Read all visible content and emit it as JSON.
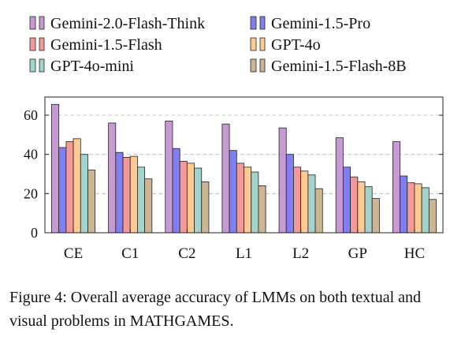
{
  "chart_data": {
    "type": "bar",
    "categories": [
      "CE",
      "C1",
      "C2",
      "L1",
      "L2",
      "GP",
      "HC"
    ],
    "ylim": [
      0,
      70
    ],
    "yticks": [
      0,
      20,
      40,
      60
    ],
    "grid": "horizontal dashed",
    "legend_position": "top",
    "series": [
      {
        "name": "Gemini-2.0-Flash-Think",
        "color": "#c79ad4",
        "values": [
          65.5,
          56,
          57,
          55.5,
          53.5,
          48.5,
          46.5
        ]
      },
      {
        "name": "Gemini-1.5-Pro",
        "color": "#7f7ff0",
        "values": [
          43.5,
          41,
          43,
          42,
          40,
          33.5,
          29
        ]
      },
      {
        "name": "Gemini-1.5-Flash",
        "color": "#f39999",
        "values": [
          46.5,
          38.5,
          36.5,
          35.5,
          33.5,
          28.5,
          25.5
        ]
      },
      {
        "name": "GPT-4o",
        "color": "#ffc992",
        "values": [
          48,
          39,
          35.5,
          33.5,
          31.5,
          26,
          25
        ]
      },
      {
        "name": "GPT-4o-mini",
        "color": "#a2d3cc",
        "values": [
          40,
          33.5,
          33,
          31,
          29.5,
          23.5,
          23
        ]
      },
      {
        "name": "Gemini-1.5-Flash-8B",
        "color": "#cdb594",
        "values": [
          32,
          27.5,
          26,
          24,
          22.5,
          17.5,
          17
        ]
      }
    ]
  },
  "caption": {
    "prefix": "Figure 4: Overall average accuracy of LMMs on both textual and visual problems in ",
    "name_big1": "M",
    "name_small1": "ATH",
    "name_big2": "G",
    "name_small2": "AMES",
    "suffix": "."
  }
}
